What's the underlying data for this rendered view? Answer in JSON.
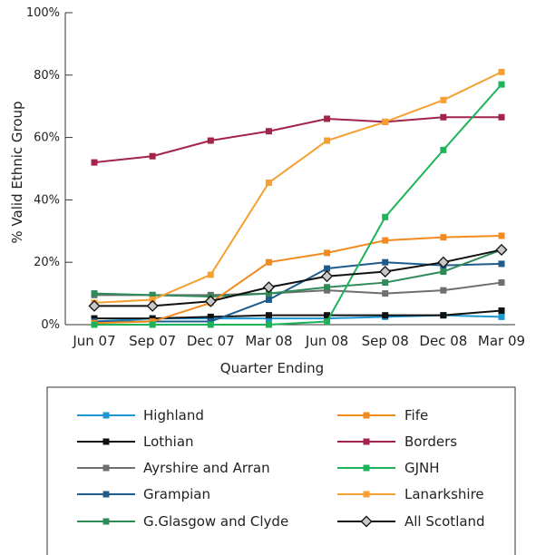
{
  "chart_data": {
    "type": "line",
    "title": "",
    "xlabel": "Quarter Ending",
    "ylabel": "% Valid Ethnic Group",
    "categories": [
      "Jun 07",
      "Sep 07",
      "Dec 07",
      "Mar 08",
      "Jun 08",
      "Sep 08",
      "Dec 08",
      "Mar 09"
    ],
    "ylim": [
      0,
      100
    ],
    "yticks": [
      "0%",
      "20%",
      "40%",
      "60%",
      "80%",
      "100%"
    ],
    "ytick_values": [
      0,
      20,
      40,
      60,
      80,
      100
    ],
    "grid": false,
    "legend_placement": "bottom",
    "series": [
      {
        "name": "Highland",
        "color": "#1e96d2",
        "marker": "square",
        "values": [
          1,
          2,
          2,
          2,
          2,
          2.5,
          3,
          2.5
        ]
      },
      {
        "name": "Lothian",
        "color": "#111111",
        "marker": "square",
        "values": [
          2,
          2,
          2.5,
          3,
          3,
          3,
          3,
          4.5
        ]
      },
      {
        "name": "Ayrshire and Arran",
        "color": "#6e6e6e",
        "marker": "square",
        "values": [
          9.5,
          9.5,
          9.5,
          10,
          11,
          10,
          11,
          13.5
        ]
      },
      {
        "name": "Grampian",
        "color": "#1f5c8c",
        "marker": "square",
        "values": [
          1,
          1,
          1,
          8,
          18,
          20,
          19,
          19.5
        ]
      },
      {
        "name": "G.Glasgow and Clyde",
        "color": "#2e8b57",
        "marker": "square",
        "values": [
          10,
          9.5,
          9,
          10,
          12,
          13.5,
          17,
          24
        ]
      },
      {
        "name": "Fife",
        "color": "#f28a1e",
        "marker": "square",
        "values": [
          0.5,
          1,
          7,
          20,
          23,
          27,
          28,
          28.5
        ]
      },
      {
        "name": "Borders",
        "color": "#a3234a",
        "marker": "square",
        "values": [
          52,
          54,
          59,
          62,
          66,
          65,
          66.5,
          66.5
        ]
      },
      {
        "name": "GJNH",
        "color": "#1db35a",
        "marker": "square",
        "values": [
          0,
          0,
          0,
          0,
          1,
          34.5,
          56,
          77
        ]
      },
      {
        "name": "Lanarkshire",
        "color": "#f5a030",
        "marker": "square",
        "values": [
          7,
          8,
          16,
          45.5,
          59,
          65,
          72,
          81
        ]
      },
      {
        "name": "All Scotland",
        "color": "#111111",
        "marker": "diamond",
        "values": [
          6,
          6,
          7.5,
          12,
          15.5,
          17,
          20,
          24
        ]
      }
    ]
  }
}
